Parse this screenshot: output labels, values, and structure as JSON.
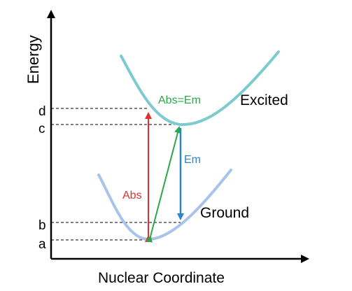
{
  "axes": {
    "y_label": "Energy",
    "x_label": "Nuclear Coordinate"
  },
  "levels": {
    "a": "a",
    "b": "b",
    "c": "c",
    "d": "d"
  },
  "curves": {
    "excited": "Excited",
    "ground": "Ground"
  },
  "transitions": {
    "abs": "Abs",
    "em": "Em",
    "abs_em": "Abs=Em"
  },
  "colors": {
    "excited_curve": "#7ecbcf",
    "ground_curve": "#a8c4ea",
    "abs_arrow": "#e03030",
    "em_arrow": "#2a86c8",
    "abs_em_arrow": "#2aa84a",
    "axis": "#000000",
    "dashed": "#000000"
  }
}
